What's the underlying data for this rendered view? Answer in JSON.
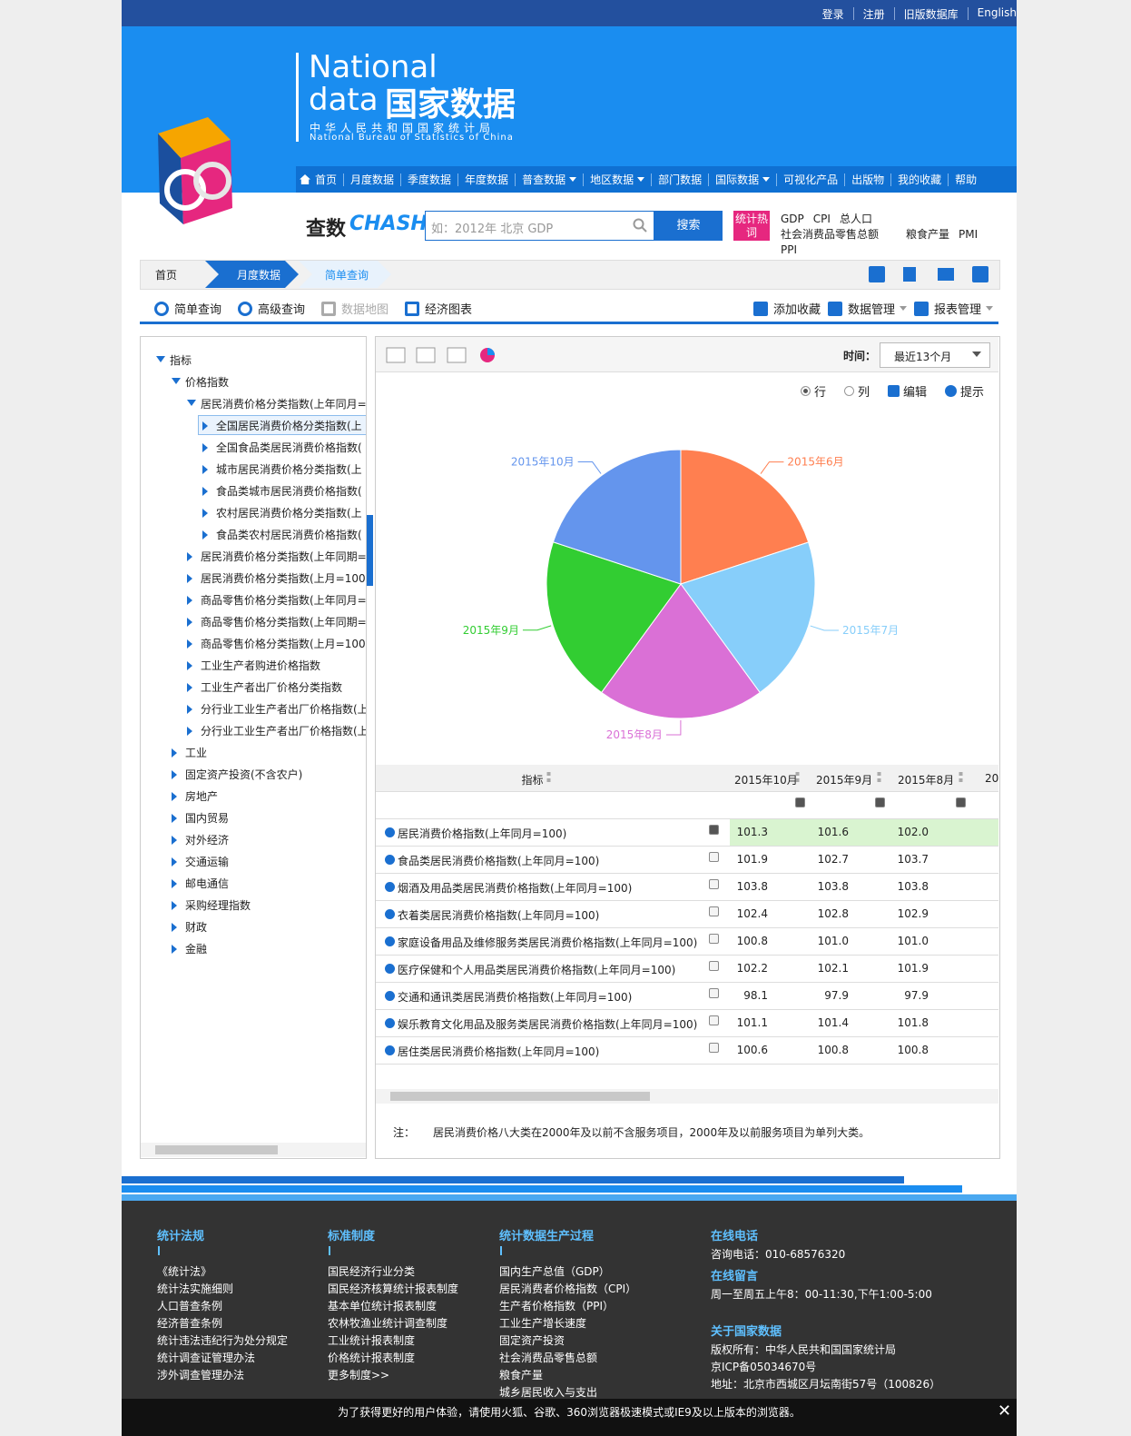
{
  "topbar": {
    "links": [
      "登录",
      "注册",
      "旧版数据库",
      "English"
    ]
  },
  "header": {
    "logo_en1": "National",
    "logo_en2": "data",
    "logo_cn": "国家数据",
    "org_cn": "中华人民共和国国家统计局",
    "org_en": "National Bureau of Statistics of China"
  },
  "nav": [
    "首页",
    "月度数据",
    "季度数据",
    "年度数据",
    "普查数据",
    "地区数据",
    "部门数据",
    "国际数据",
    "可视化产品",
    "出版物",
    "我的收藏",
    "帮助"
  ],
  "search": {
    "brand_cn": "查数",
    "brand_en": "CHASHU",
    "placeholder": "如：2012年 北京 GDP",
    "button": "搜索",
    "hot_label": "统计热词",
    "hot": [
      "GDP",
      "CPI",
      "总人口",
      "社会消费品零售总额",
      "粮食产量",
      "PMI",
      "PPI"
    ]
  },
  "breadcrumb": [
    "首页",
    "月度数据",
    "简单查询"
  ],
  "tools": [
    "简单查询",
    "高级查询",
    "数据地图",
    "经济图表"
  ],
  "actions": [
    "添加收藏",
    "数据管理",
    "报表管理"
  ],
  "tree": [
    {
      "label": "指标",
      "children": [
        {
          "label": "价格指数",
          "children": [
            {
              "label": "居民消费价格分类指数(上年同月=1",
              "children": [
                {
                  "label": "全国居民消费价格分类指数(上"
                },
                {
                  "label": "全国食品类居民消费价格指数("
                },
                {
                  "label": "城市居民消费价格分类指数(上"
                },
                {
                  "label": "食品类城市居民消费价格指数("
                },
                {
                  "label": "农村居民消费价格分类指数(上"
                },
                {
                  "label": "食品类农村居民消费价格指数("
                }
              ]
            },
            {
              "label": "居民消费价格分类指数(上年同期="
            },
            {
              "label": "居民消费价格分类指数(上月=100)"
            },
            {
              "label": "商品零售价格分类指数(上年同月="
            },
            {
              "label": "商品零售价格分类指数(上年同期="
            },
            {
              "label": "商品零售价格分类指数(上月=100)"
            },
            {
              "label": "工业生产者购进价格指数"
            },
            {
              "label": "工业生产者出厂价格分类指数"
            },
            {
              "label": "分行业工业生产者出厂价格指数(上"
            },
            {
              "label": "分行业工业生产者出厂价格指数(上"
            }
          ]
        },
        {
          "label": "工业"
        },
        {
          "label": "固定资产投资(不含农户)"
        },
        {
          "label": "房地产"
        },
        {
          "label": "国内贸易"
        },
        {
          "label": "对外经济"
        },
        {
          "label": "交通运输"
        },
        {
          "label": "邮电通信"
        },
        {
          "label": "采购经理指数"
        },
        {
          "label": "财政"
        },
        {
          "label": "金融"
        }
      ]
    }
  ],
  "time": {
    "label": "时间：",
    "value": "最近13个月"
  },
  "options": [
    "行",
    "列",
    "编辑",
    "提示"
  ],
  "chart_data": {
    "type": "pie",
    "categories": [
      "2015年6月",
      "2015年7月",
      "2015年8月",
      "2015年9月",
      "2015年10月"
    ],
    "values": [
      101.4,
      101.6,
      102.0,
      101.6,
      101.3
    ],
    "colors": [
      "#ff7f50",
      "#87cefa",
      "#da70d6",
      "#32cd32",
      "#6495ed"
    ]
  },
  "table": {
    "header": [
      "指标",
      "2015年10月",
      "2015年9月",
      "2015年8月",
      "20"
    ],
    "rows": [
      [
        "居民消费价格指数(上年同月=100)",
        "101.3",
        "101.6",
        "102.0"
      ],
      [
        "食品类居民消费价格指数(上年同月=100)",
        "101.9",
        "102.7",
        "103.7"
      ],
      [
        "烟酒及用品类居民消费价格指数(上年同月=100)",
        "103.8",
        "103.8",
        "103.8"
      ],
      [
        "衣着类居民消费价格指数(上年同月=100)",
        "102.4",
        "102.8",
        "102.9"
      ],
      [
        "家庭设备用品及维修服务类居民消费价格指数(上年同月=100)",
        "100.8",
        "101.0",
        "101.0"
      ],
      [
        "医疗保健和个人用品类居民消费价格指数(上年同月=100)",
        "102.2",
        "102.1",
        "101.9"
      ],
      [
        "交通和通讯类居民消费价格指数(上年同月=100)",
        "98.1",
        "97.9",
        "97.9"
      ],
      [
        "娱乐教育文化用品及服务类居民消费价格指数(上年同月=100)",
        "101.1",
        "101.4",
        "101.8"
      ],
      [
        "居住类居民消费价格指数(上年同月=100)",
        "100.6",
        "100.8",
        "100.8"
      ]
    ]
  },
  "note": {
    "label": "注：",
    "text": "居民消费价格八大类在2000年及以前不含服务项目，2000年及以前服务项目为单列大类。"
  },
  "footer": {
    "columns": [
      {
        "title": "统计法规",
        "items": [
          "《统计法》",
          "统计法实施细则",
          "人口普查条例",
          "经济普查条例",
          "统计违法违纪行为处分规定",
          "统计调查证管理办法",
          "涉外调查管理办法"
        ]
      },
      {
        "title": "标准制度",
        "items": [
          "国民经济行业分类",
          "国民经济核算统计报表制度",
          "基本单位统计报表制度",
          "农林牧渔业统计调查制度",
          "工业统计报表制度",
          "价格统计报表制度",
          "更多制度>>"
        ]
      },
      {
        "title": "统计数据生产过程",
        "items": [
          "国内生产总值（GDP）",
          "居民消费者价格指数（CPI）",
          "生产者价格指数（PPI）",
          "工业生产增长速度",
          "固定资产投资",
          "社会消费品零售总额",
          "粮食产量",
          "城乡居民收入与支出"
        ]
      }
    ],
    "contact": [
      {
        "title": "在线电话",
        "items": [
          "咨询电话：010-68576320"
        ]
      },
      {
        "title": "在线留言",
        "items": [
          "周一至周五上午8：00-11:30,下午1:00-5:00"
        ]
      },
      {
        "title": "关于国家数据",
        "items": [
          "版权所有：中华人民共和国国家统计局",
          "京ICP备05034670号",
          "地址：北京市西城区月坛南街57号（100826）"
        ]
      }
    ]
  },
  "bottom_bar": "为了获得更好的用户体验，请使用火狐、谷歌、360浏览器极速模式或IE9及以上版本的浏览器。"
}
